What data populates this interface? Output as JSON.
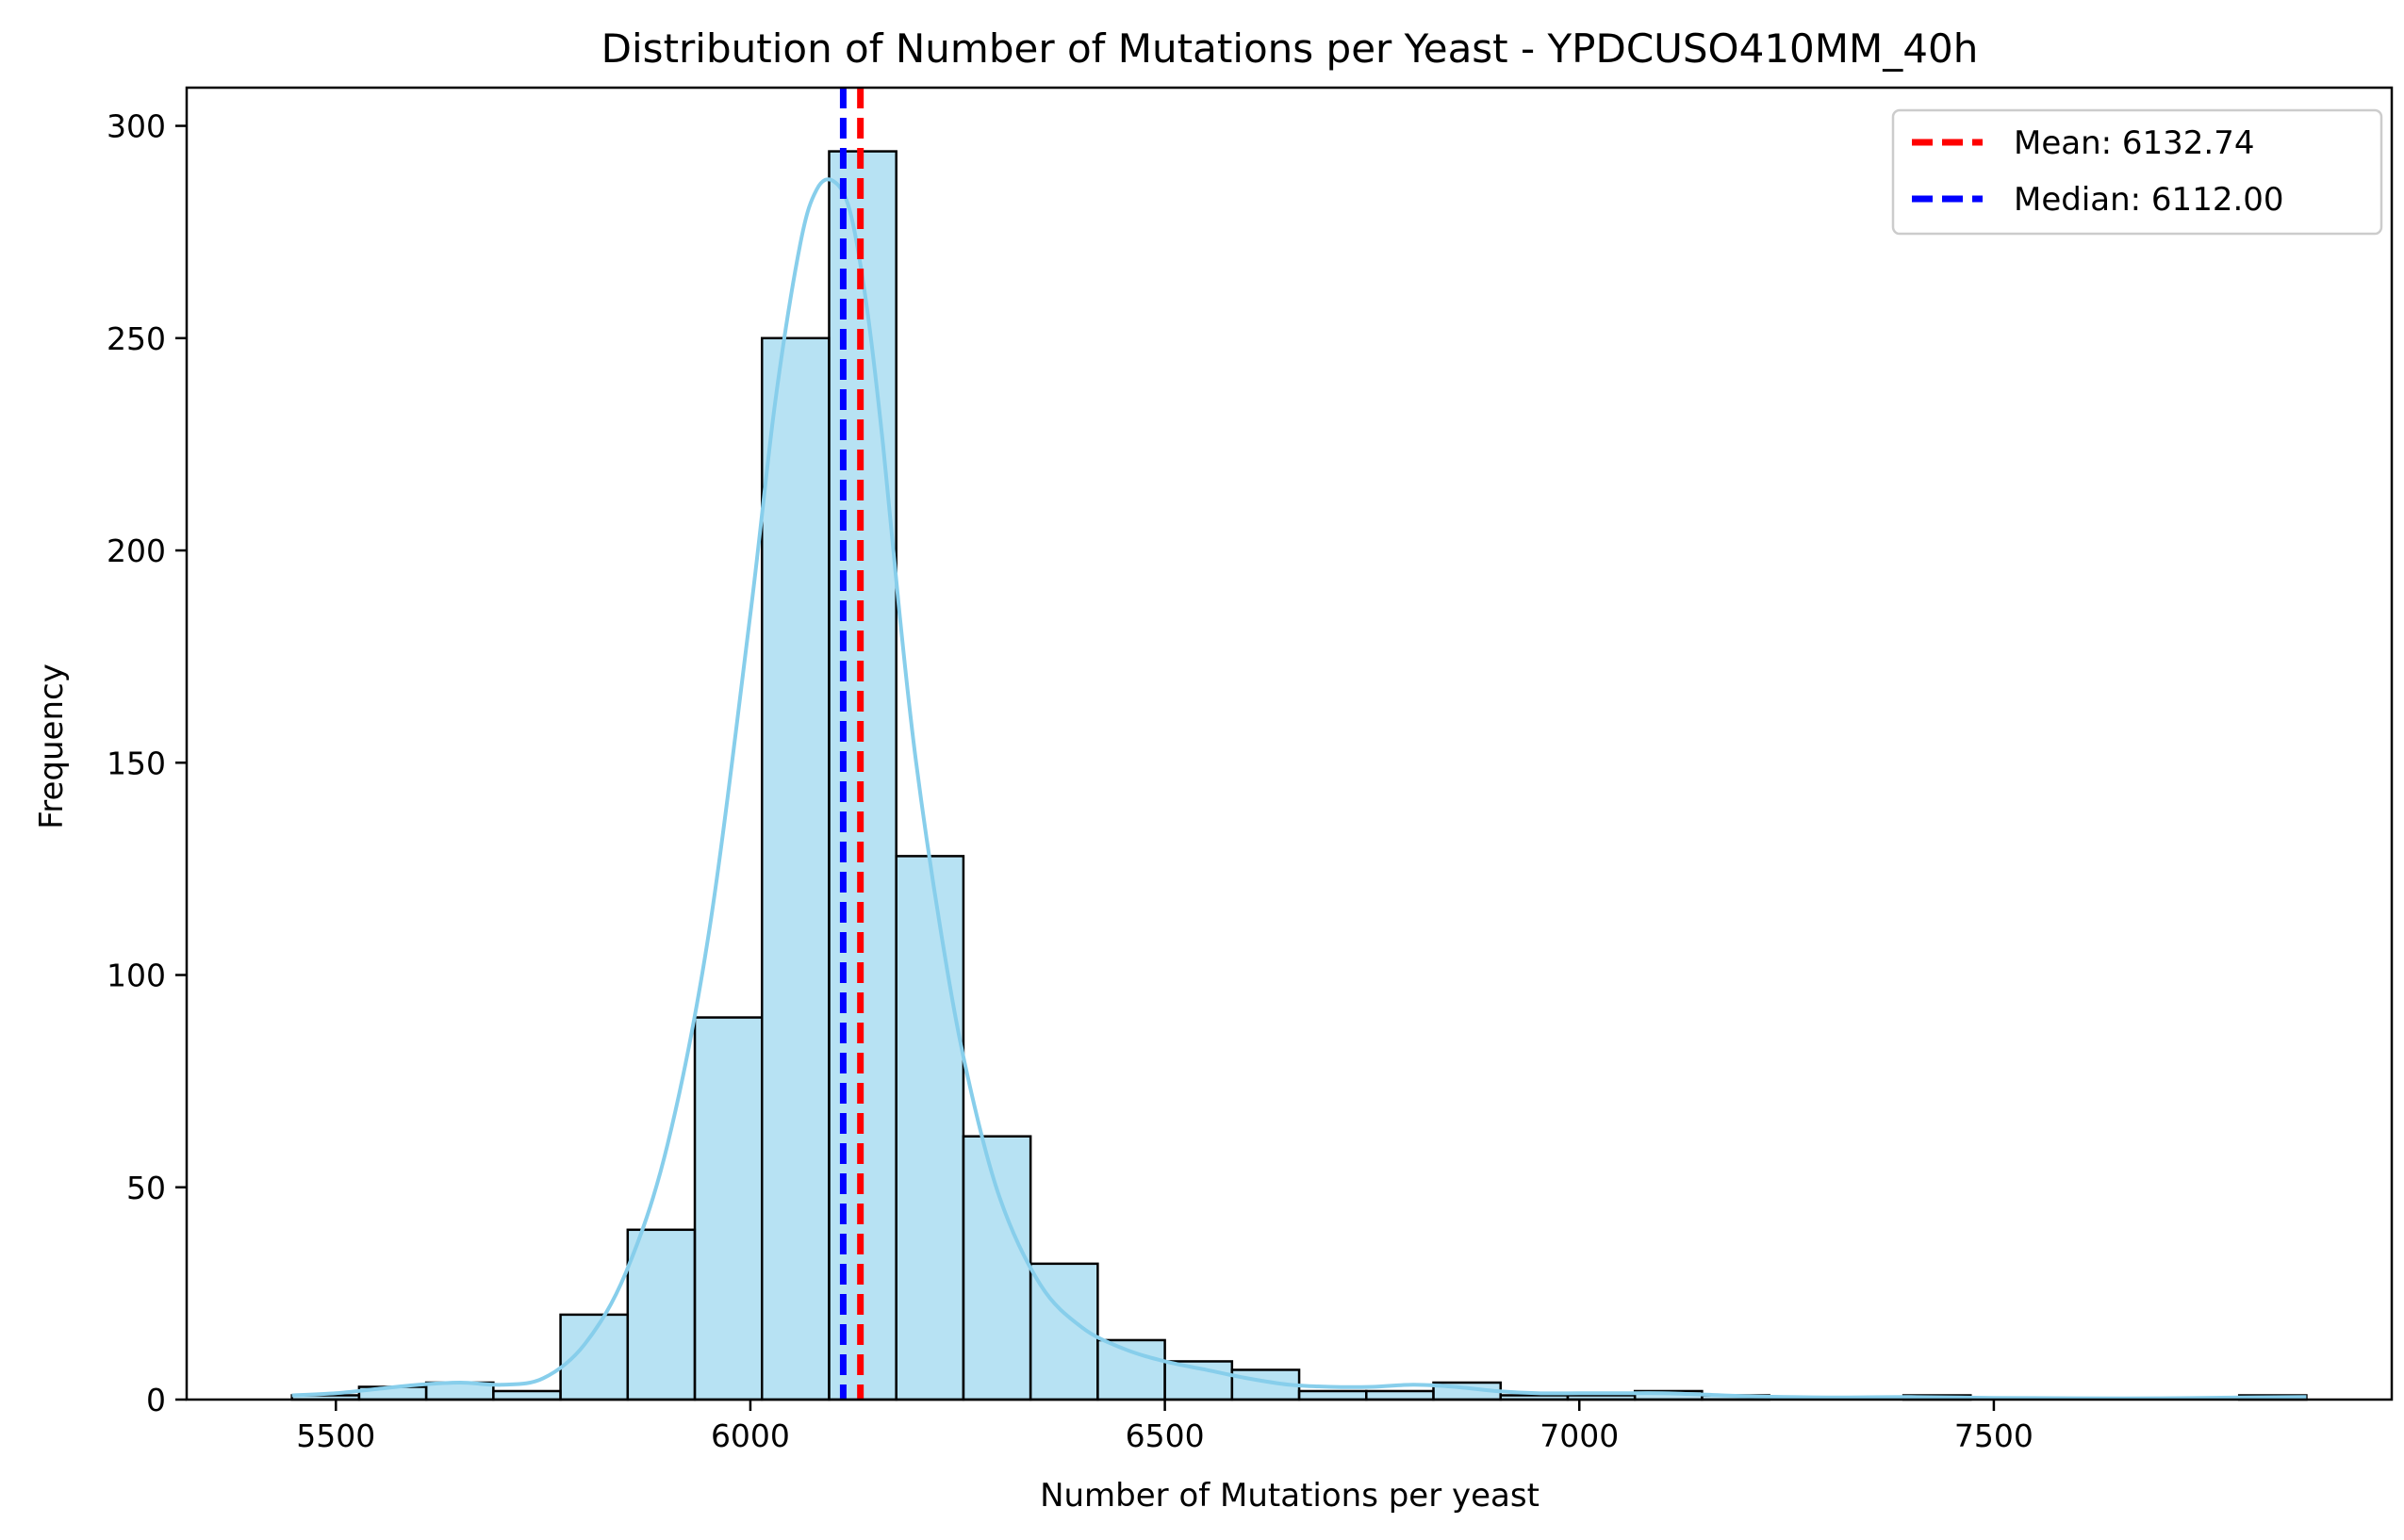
{
  "chart_data": {
    "type": "histogram",
    "title": "Distribution of Number of Mutations per Yeast - YPDCUSO410MM_40h",
    "xlabel": "Number of Mutations per yeast",
    "ylabel": "Frequency",
    "xlim": [
      5320,
      7980
    ],
    "ylim": [
      0,
      309
    ],
    "xticks": [
      5500,
      6000,
      6500,
      7000,
      7500
    ],
    "yticks": [
      0,
      50,
      100,
      150,
      200,
      250,
      300
    ],
    "grid": false,
    "bar_color": "#87CEEB",
    "bar_edge_color": "#000000",
    "kde_color": "#87CEEB",
    "bins": [
      {
        "start": 5447,
        "end": 5528,
        "count": 1
      },
      {
        "start": 5528,
        "end": 5609,
        "count": 3
      },
      {
        "start": 5609,
        "end": 5690,
        "count": 4
      },
      {
        "start": 5690,
        "end": 5771,
        "count": 2
      },
      {
        "start": 5771,
        "end": 5852,
        "count": 20
      },
      {
        "start": 5852,
        "end": 5933,
        "count": 40
      },
      {
        "start": 5933,
        "end": 6014,
        "count": 90
      },
      {
        "start": 6014,
        "end": 6095,
        "count": 250
      },
      {
        "start": 6095,
        "end": 6176,
        "count": 294
      },
      {
        "start": 6176,
        "end": 6257,
        "count": 128
      },
      {
        "start": 6257,
        "end": 6338,
        "count": 62
      },
      {
        "start": 6338,
        "end": 6419,
        "count": 32
      },
      {
        "start": 6419,
        "end": 6500,
        "count": 14
      },
      {
        "start": 6500,
        "end": 6581,
        "count": 9
      },
      {
        "start": 6581,
        "end": 6662,
        "count": 7
      },
      {
        "start": 6662,
        "end": 6743,
        "count": 2
      },
      {
        "start": 6743,
        "end": 6824,
        "count": 2
      },
      {
        "start": 6824,
        "end": 6905,
        "count": 4
      },
      {
        "start": 6905,
        "end": 6986,
        "count": 1
      },
      {
        "start": 6986,
        "end": 7067,
        "count": 1
      },
      {
        "start": 7067,
        "end": 7148,
        "count": 2
      },
      {
        "start": 7148,
        "end": 7229,
        "count": 1
      },
      {
        "start": 7229,
        "end": 7310,
        "count": 0
      },
      {
        "start": 7310,
        "end": 7391,
        "count": 0
      },
      {
        "start": 7391,
        "end": 7472,
        "count": 1
      },
      {
        "start": 7472,
        "end": 7553,
        "count": 0
      },
      {
        "start": 7553,
        "end": 7634,
        "count": 0
      },
      {
        "start": 7634,
        "end": 7715,
        "count": 0
      },
      {
        "start": 7715,
        "end": 7796,
        "count": 0
      },
      {
        "start": 7796,
        "end": 7877,
        "count": 1
      }
    ],
    "kde": {
      "x": [
        5447,
        5500,
        5550,
        5600,
        5650,
        5700,
        5750,
        5800,
        5850,
        5900,
        5950,
        6000,
        6030,
        6060,
        6080,
        6100,
        6120,
        6140,
        6160,
        6180,
        6200,
        6230,
        6260,
        6300,
        6350,
        6400,
        6450,
        6500,
        6550,
        6600,
        6650,
        6700,
        6750,
        6800,
        6850,
        6900,
        6950,
        7000,
        7050,
        7100,
        7150,
        7200,
        7300,
        7400,
        7500,
        7600,
        7700,
        7800,
        7877
      ],
      "y": [
        1,
        1.5,
        2.5,
        3.5,
        4,
        3.5,
        5,
        13,
        30,
        60,
        110,
        185,
        235,
        272,
        285,
        287,
        280,
        258,
        225,
        185,
        150,
        110,
        78,
        48,
        27,
        17,
        12,
        9,
        7,
        5,
        3.5,
        3,
        3,
        3.5,
        3,
        2,
        1.5,
        1.5,
        1.5,
        1.5,
        1.2,
        0.8,
        0.5,
        0.6,
        0.4,
        0.3,
        0.3,
        0.5,
        0.6
      ]
    },
    "reference_lines": [
      {
        "name": "Mean: 6132.74",
        "value": 6132.74,
        "color": "#FF0000",
        "style": "dashed"
      },
      {
        "name": "Median: 6112.00",
        "value": 6112.0,
        "color": "#0000FF",
        "style": "dashed"
      }
    ],
    "legend_position": "top-right"
  }
}
